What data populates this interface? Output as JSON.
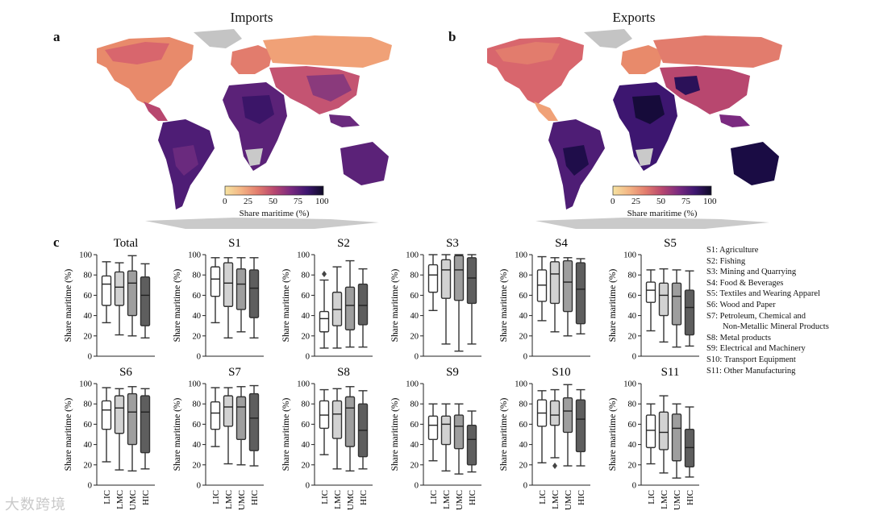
{
  "panels": {
    "a": {
      "letter": "a",
      "title": "Imports"
    },
    "b": {
      "letter": "b",
      "title": "Exports"
    },
    "c": {
      "letter": "c"
    }
  },
  "colorbar": {
    "label": "Share maritime (%)",
    "ticks": [
      "0",
      "25",
      "50",
      "75",
      "100"
    ],
    "colors": [
      "#f6e3a1",
      "#f3b484",
      "#e27c6d",
      "#b8476f",
      "#7b2a80",
      "#3d1670",
      "#0e0a26"
    ]
  },
  "sector_legend": [
    "S1: Agriculture",
    "S2: Fishing",
    "S3: Mining and Quarrying",
    "S4: Food & Beverages",
    "S5: Textiles and Wearing Apparel",
    "S6: Wood and Paper",
    "S7: Petroleum, Chemical and",
    "Non-Metallic Mineral Products",
    "S8: Metal products",
    "S9: Electrical and Machinery",
    "S10: Transport Equipment",
    "S11: Other Manufacturing"
  ],
  "box_colors": [
    "#ffffff",
    "#d2d2d2",
    "#9e9e9e",
    "#5e5e5e"
  ],
  "watermark": "大数跨境",
  "chart_data": {
    "type": "box",
    "ylabel": "Share maritime (%)",
    "ylim": [
      0,
      100
    ],
    "yticks": [
      "0",
      "20",
      "40",
      "60",
      "80",
      "100"
    ],
    "categories": [
      "LIC",
      "LMC",
      "UMC",
      "HIC"
    ],
    "plots": [
      {
        "title": "Total",
        "boxes": [
          {
            "min": 33,
            "q1": 50,
            "median": 71,
            "q3": 79,
            "max": 93
          },
          {
            "min": 21,
            "q1": 50,
            "median": 68,
            "q3": 83,
            "max": 92
          },
          {
            "min": 20,
            "q1": 40,
            "median": 72,
            "q3": 84,
            "max": 99
          },
          {
            "min": 18,
            "q1": 30,
            "median": 60,
            "q3": 78,
            "max": 91
          }
        ]
      },
      {
        "title": "S1",
        "boxes": [
          {
            "min": 33,
            "q1": 59,
            "median": 76,
            "q3": 88,
            "max": 97
          },
          {
            "min": 18,
            "q1": 49,
            "median": 72,
            "q3": 92,
            "max": 97
          },
          {
            "min": 24,
            "q1": 46,
            "median": 71,
            "q3": 86,
            "max": 97
          },
          {
            "min": 18,
            "q1": 38,
            "median": 67,
            "q3": 85,
            "max": 97
          }
        ]
      },
      {
        "title": "S2",
        "boxes": [
          {
            "min": 8,
            "q1": 24,
            "median": 37,
            "q3": 44,
            "max": 75,
            "outliers": [
              81
            ]
          },
          {
            "min": 8,
            "q1": 30,
            "median": 46,
            "q3": 63,
            "max": 88
          },
          {
            "min": 9,
            "q1": 26,
            "median": 50,
            "q3": 68,
            "max": 94
          },
          {
            "min": 9,
            "q1": 31,
            "median": 50,
            "q3": 71,
            "max": 86
          }
        ]
      },
      {
        "title": "S3",
        "boxes": [
          {
            "min": 45,
            "q1": 63,
            "median": 80,
            "q3": 90,
            "max": 100
          },
          {
            "min": 12,
            "q1": 57,
            "median": 85,
            "q3": 95,
            "max": 100
          },
          {
            "min": 5,
            "q1": 55,
            "median": 85,
            "q3": 99,
            "max": 100
          },
          {
            "min": 12,
            "q1": 52,
            "median": 77,
            "q3": 97,
            "max": 100
          }
        ]
      },
      {
        "title": "S4",
        "boxes": [
          {
            "min": 35,
            "q1": 54,
            "median": 70,
            "q3": 85,
            "max": 98
          },
          {
            "min": 24,
            "q1": 52,
            "median": 81,
            "q3": 93,
            "max": 97
          },
          {
            "min": 20,
            "q1": 44,
            "median": 73,
            "q3": 94,
            "max": 97
          },
          {
            "min": 22,
            "q1": 32,
            "median": 66,
            "q3": 92,
            "max": 96
          }
        ]
      },
      {
        "title": "S5",
        "boxes": [
          {
            "min": 25,
            "q1": 53,
            "median": 65,
            "q3": 73,
            "max": 85
          },
          {
            "min": 14,
            "q1": 40,
            "median": 60,
            "q3": 72,
            "max": 86
          },
          {
            "min": 9,
            "q1": 31,
            "median": 59,
            "q3": 72,
            "max": 85
          },
          {
            "min": 10,
            "q1": 21,
            "median": 48,
            "q3": 65,
            "max": 84
          }
        ]
      },
      {
        "title": "S6",
        "boxes": [
          {
            "min": 23,
            "q1": 55,
            "median": 74,
            "q3": 83,
            "max": 96
          },
          {
            "min": 15,
            "q1": 51,
            "median": 76,
            "q3": 88,
            "max": 95
          },
          {
            "min": 14,
            "q1": 40,
            "median": 72,
            "q3": 90,
            "max": 97
          },
          {
            "min": 16,
            "q1": 32,
            "median": 72,
            "q3": 88,
            "max": 95
          }
        ]
      },
      {
        "title": "S7",
        "boxes": [
          {
            "min": 38,
            "q1": 55,
            "median": 71,
            "q3": 82,
            "max": 96
          },
          {
            "min": 21,
            "q1": 58,
            "median": 77,
            "q3": 88,
            "max": 96
          },
          {
            "min": 20,
            "q1": 45,
            "median": 77,
            "q3": 87,
            "max": 97
          },
          {
            "min": 19,
            "q1": 34,
            "median": 66,
            "q3": 90,
            "max": 98
          }
        ]
      },
      {
        "title": "S8",
        "boxes": [
          {
            "min": 30,
            "q1": 56,
            "median": 69,
            "q3": 83,
            "max": 94
          },
          {
            "min": 16,
            "q1": 46,
            "median": 70,
            "q3": 83,
            "max": 95
          },
          {
            "min": 14,
            "q1": 38,
            "median": 76,
            "q3": 87,
            "max": 97
          },
          {
            "min": 16,
            "q1": 28,
            "median": 54,
            "q3": 80,
            "max": 93
          }
        ]
      },
      {
        "title": "S9",
        "boxes": [
          {
            "min": 24,
            "q1": 45,
            "median": 59,
            "q3": 68,
            "max": 80
          },
          {
            "min": 14,
            "q1": 40,
            "median": 60,
            "q3": 68,
            "max": 80
          },
          {
            "min": 11,
            "q1": 36,
            "median": 58,
            "q3": 69,
            "max": 80
          },
          {
            "min": 13,
            "q1": 20,
            "median": 45,
            "q3": 59,
            "max": 73
          }
        ]
      },
      {
        "title": "S10",
        "boxes": [
          {
            "min": 22,
            "q1": 58,
            "median": 71,
            "q3": 84,
            "max": 93
          },
          {
            "min": 27,
            "q1": 59,
            "median": 69,
            "q3": 83,
            "max": 94,
            "outliers": [
              19
            ]
          },
          {
            "min": 19,
            "q1": 52,
            "median": 73,
            "q3": 86,
            "max": 99
          },
          {
            "min": 19,
            "q1": 33,
            "median": 65,
            "q3": 84,
            "max": 94
          }
        ]
      },
      {
        "title": "S11",
        "boxes": [
          {
            "min": 21,
            "q1": 37,
            "median": 54,
            "q3": 69,
            "max": 80
          },
          {
            "min": 12,
            "q1": 35,
            "median": 52,
            "q3": 72,
            "max": 88
          },
          {
            "min": 7,
            "q1": 24,
            "median": 56,
            "q3": 70,
            "max": 80
          },
          {
            "min": 8,
            "q1": 18,
            "median": 37,
            "q3": 55,
            "max": 77
          }
        ]
      }
    ]
  }
}
